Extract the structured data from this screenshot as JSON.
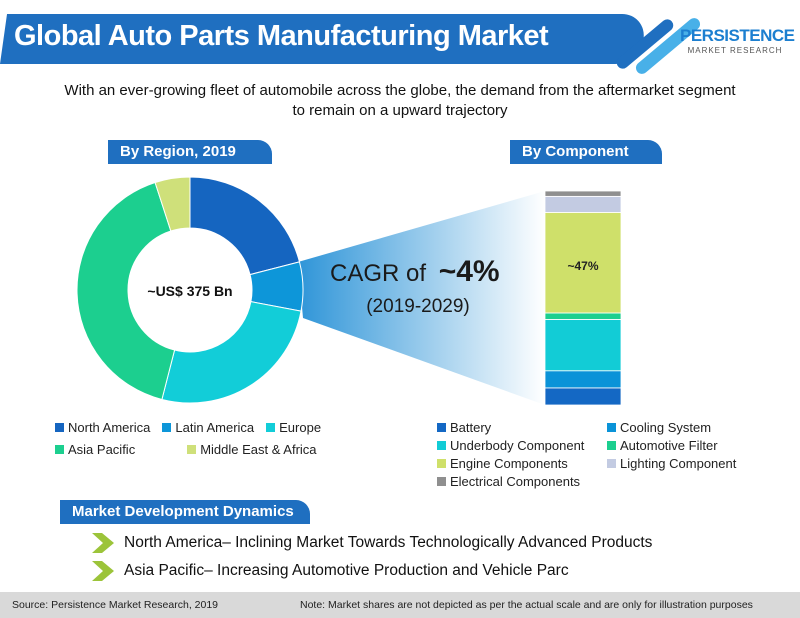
{
  "header": {
    "title": "Global Auto Parts Manufacturing Market",
    "logo_line1": "PERSISTENCE",
    "logo_line2": "MARKET RESEARCH",
    "color": "#1f6fc0"
  },
  "subtitle": [
    "With an ever-growing fleet of automobile across the globe, the demand from the aftermarket segment",
    "to remain on a upward trajectory"
  ],
  "cagr": {
    "prefix": "CAGR of ",
    "value": "~4%",
    "period": "(2019-2029)"
  },
  "chart_data": [
    {
      "type": "pie",
      "variant": "donut",
      "title": "By Region, 2019",
      "center_label": "~US$ 375 Bn",
      "categories": [
        "North America",
        "Latin America",
        "Europe",
        "Asia Pacific",
        "Middle East & Africa"
      ],
      "values": [
        21,
        7,
        26,
        41,
        5
      ],
      "colors": [
        "#1565c0",
        "#0d96d9",
        "#12cdd8",
        "#1ccf8f",
        "#cfe07a"
      ],
      "legend": "bottom"
    },
    {
      "type": "bar",
      "variant": "stacked-100",
      "title": "By Component",
      "categories": [
        "Battery",
        "Cooling System",
        "Underbody Component",
        "Automotive Filter",
        "Engine Components",
        "Lighting Component",
        "Electrical Components"
      ],
      "values": [
        8,
        8,
        24,
        3,
        47,
        7.5,
        2.5
      ],
      "data_labels": {
        "Engine Components": "~47%"
      },
      "colors": [
        "#1468c4",
        "#0a93d8",
        "#12ccd6",
        "#1ccf8f",
        "#cfe06a",
        "#c3cbe2",
        "#8f8f8f"
      ],
      "legend": "bottom"
    }
  ],
  "dynamics": {
    "title": "Market Development Dynamics",
    "items": [
      "North America– Inclining Market Towards Technologically Advanced Products",
      "Asia Pacific– Increasing Automotive Production and Vehicle Parc"
    ]
  },
  "footer": {
    "source": "Source: Persistence Market Research, 2019",
    "note": "Note: Market shares are not depicted as per the actual scale and are only for illustration purposes"
  }
}
